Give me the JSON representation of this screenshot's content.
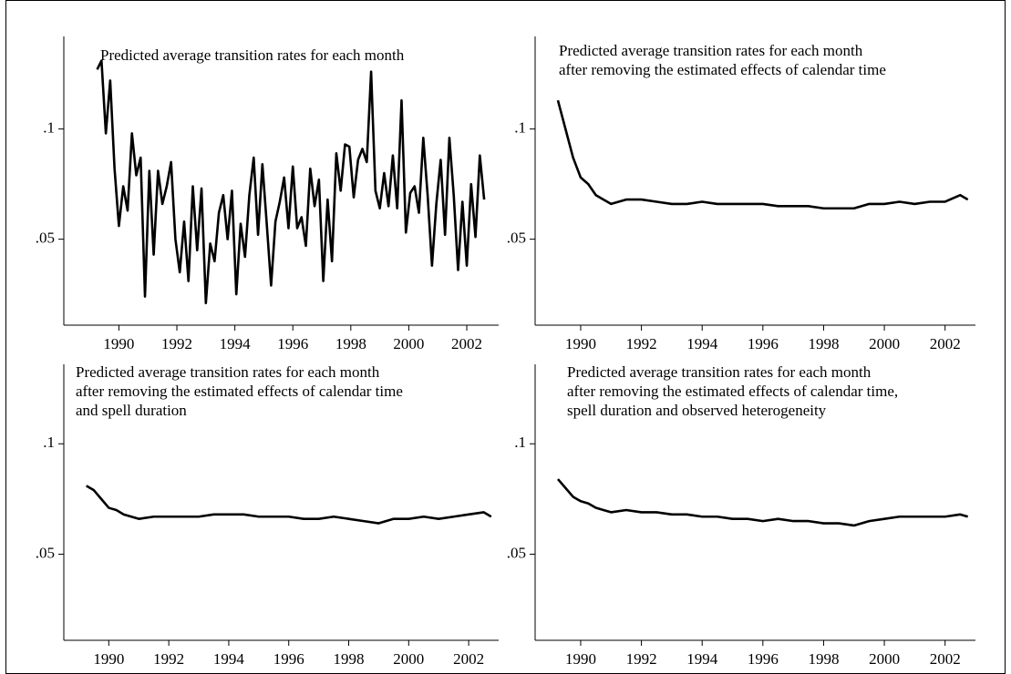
{
  "chart_data": [
    {
      "type": "line",
      "title": [
        "Predicted average transition rates for each month"
      ],
      "x": [
        1989.25,
        1989.4,
        1989.55,
        1989.7,
        1989.85,
        1990,
        1990.15,
        1990.3,
        1990.45,
        1990.6,
        1990.75,
        1990.9,
        1991.05,
        1991.2,
        1991.35,
        1991.5,
        1991.65,
        1991.8,
        1991.95,
        1992.1,
        1992.25,
        1992.4,
        1992.55,
        1992.7,
        1992.85,
        1993,
        1993.15,
        1993.3,
        1993.45,
        1993.6,
        1993.75,
        1993.9,
        1994.05,
        1994.2,
        1994.35,
        1994.5,
        1994.65,
        1994.8,
        1994.95,
        1995.1,
        1995.25,
        1995.4,
        1995.55,
        1995.7,
        1995.85,
        1996,
        1996.15,
        1996.3,
        1996.45,
        1996.6,
        1996.75,
        1996.9,
        1997.05,
        1997.2,
        1997.35,
        1997.5,
        1997.65,
        1997.8,
        1997.95,
        1998.1,
        1998.25,
        1998.4,
        1998.55,
        1998.7,
        1998.85,
        1999,
        1999.15,
        1999.3,
        1999.45,
        1999.6,
        1999.75,
        1999.9,
        2000.05,
        2000.2,
        2000.35,
        2000.5,
        2000.65,
        2000.8,
        2000.95,
        2001.1,
        2001.25,
        2001.4,
        2001.55,
        2001.7,
        2001.85,
        2002,
        2002.15,
        2002.3,
        2002.45,
        2002.6
      ],
      "values": [
        0.127,
        0.131,
        0.098,
        0.122,
        0.082,
        0.056,
        0.074,
        0.063,
        0.098,
        0.079,
        0.087,
        0.024,
        0.081,
        0.043,
        0.081,
        0.066,
        0.074,
        0.085,
        0.05,
        0.035,
        0.058,
        0.031,
        0.074,
        0.045,
        0.073,
        0.021,
        0.048,
        0.04,
        0.062,
        0.07,
        0.05,
        0.072,
        0.025,
        0.057,
        0.042,
        0.07,
        0.087,
        0.052,
        0.084,
        0.057,
        0.029,
        0.058,
        0.067,
        0.078,
        0.055,
        0.083,
        0.055,
        0.06,
        0.047,
        0.082,
        0.065,
        0.077,
        0.031,
        0.068,
        0.04,
        0.089,
        0.072,
        0.093,
        0.092,
        0.069,
        0.086,
        0.091,
        0.085,
        0.126,
        0.072,
        0.064,
        0.08,
        0.065,
        0.088,
        0.064,
        0.113,
        0.053,
        0.071,
        0.074,
        0.062,
        0.096,
        0.07,
        0.038,
        0.066,
        0.086,
        0.052,
        0.096,
        0.07,
        0.036,
        0.067,
        0.038,
        0.075,
        0.051,
        0.088,
        0.068
      ],
      "color": "#000000",
      "xlim": [
        1988.1,
        2003.1
      ],
      "ylim": [
        0.011,
        0.142
      ],
      "xticks": [
        1990,
        1992,
        1994,
        1996,
        1998,
        2000,
        2002
      ],
      "yticks": [
        {
          "value": 0.05,
          "label": ".05"
        },
        {
          "value": 0.1,
          "label": ".1"
        }
      ]
    },
    {
      "type": "line",
      "title": [
        "Predicted average transition rates for each month",
        "after removing the estimated effects of calendar time"
      ],
      "x": [
        1989.25,
        1989.5,
        1989.75,
        1990,
        1990.25,
        1990.5,
        1990.75,
        1991,
        1991.5,
        1992,
        1992.5,
        1993,
        1993.5,
        1994,
        1994.5,
        1995,
        1995.5,
        1996,
        1996.5,
        1997,
        1997.5,
        1998,
        1998.5,
        1999,
        1999.5,
        2000,
        2000.5,
        2001,
        2001.5,
        2002,
        2002.5,
        2002.75
      ],
      "values": [
        0.113,
        0.1,
        0.087,
        0.078,
        0.075,
        0.07,
        0.068,
        0.066,
        0.068,
        0.068,
        0.067,
        0.066,
        0.066,
        0.067,
        0.066,
        0.066,
        0.066,
        0.066,
        0.065,
        0.065,
        0.065,
        0.064,
        0.064,
        0.064,
        0.066,
        0.066,
        0.067,
        0.066,
        0.067,
        0.067,
        0.07,
        0.068
      ],
      "color": "#000000",
      "xlim": [
        1988.5,
        2003.0
      ],
      "ylim": [
        0.011,
        0.142
      ],
      "xticks": [
        1990,
        1992,
        1994,
        1996,
        1998,
        2000,
        2002
      ],
      "yticks": [
        {
          "value": 0.05,
          "label": ".05"
        },
        {
          "value": 0.1,
          "label": ".1"
        }
      ]
    },
    {
      "type": "line",
      "title": [
        "Predicted average transition rates for each month",
        "after removing the estimated effects of calendar time",
        "and spell duration"
      ],
      "x": [
        1989.25,
        1989.5,
        1989.75,
        1990,
        1990.25,
        1990.5,
        1990.75,
        1991,
        1991.5,
        1992,
        1992.5,
        1993,
        1993.5,
        1994,
        1994.5,
        1995,
        1995.5,
        1996,
        1996.5,
        1997,
        1997.5,
        1998,
        1998.5,
        1999,
        1999.5,
        2000,
        2000.5,
        2001,
        2001.5,
        2002,
        2002.5,
        2002.75
      ],
      "values": [
        0.081,
        0.079,
        0.075,
        0.071,
        0.07,
        0.068,
        0.067,
        0.066,
        0.067,
        0.067,
        0.067,
        0.067,
        0.068,
        0.068,
        0.068,
        0.067,
        0.067,
        0.067,
        0.066,
        0.066,
        0.067,
        0.066,
        0.065,
        0.064,
        0.066,
        0.066,
        0.067,
        0.066,
        0.067,
        0.068,
        0.069,
        0.067
      ],
      "color": "#000000",
      "xlim": [
        1988.5,
        2003.0
      ],
      "ylim": [
        0.011,
        0.136
      ],
      "xticks": [
        1990,
        1992,
        1994,
        1996,
        1998,
        2000,
        2002
      ],
      "yticks": [
        {
          "value": 0.05,
          "label": ".05"
        },
        {
          "value": 0.1,
          "label": ".1"
        }
      ]
    },
    {
      "type": "line",
      "title": [
        "Predicted average transition rates for each month",
        "after removing the estimated effects of calendar time,",
        "spell duration and observed heterogeneity"
      ],
      "x": [
        1989.25,
        1989.5,
        1989.75,
        1990,
        1990.25,
        1990.5,
        1990.75,
        1991,
        1991.5,
        1992,
        1992.5,
        1993,
        1993.5,
        1994,
        1994.5,
        1995,
        1995.5,
        1996,
        1996.5,
        1997,
        1997.5,
        1998,
        1998.5,
        1999,
        1999.5,
        2000,
        2000.5,
        2001,
        2001.5,
        2002,
        2002.5,
        2002.75
      ],
      "values": [
        0.084,
        0.08,
        0.076,
        0.074,
        0.073,
        0.071,
        0.07,
        0.069,
        0.07,
        0.069,
        0.069,
        0.068,
        0.068,
        0.067,
        0.067,
        0.066,
        0.066,
        0.065,
        0.066,
        0.065,
        0.065,
        0.064,
        0.064,
        0.063,
        0.065,
        0.066,
        0.067,
        0.067,
        0.067,
        0.067,
        0.068,
        0.067
      ],
      "color": "#000000",
      "xlim": [
        1988.5,
        2003.0
      ],
      "ylim": [
        0.011,
        0.136
      ],
      "xticks": [
        1990,
        1992,
        1994,
        1996,
        1998,
        2000,
        2002
      ],
      "yticks": [
        {
          "value": 0.05,
          "label": ".05"
        },
        {
          "value": 0.1,
          "label": ".1"
        }
      ]
    }
  ]
}
